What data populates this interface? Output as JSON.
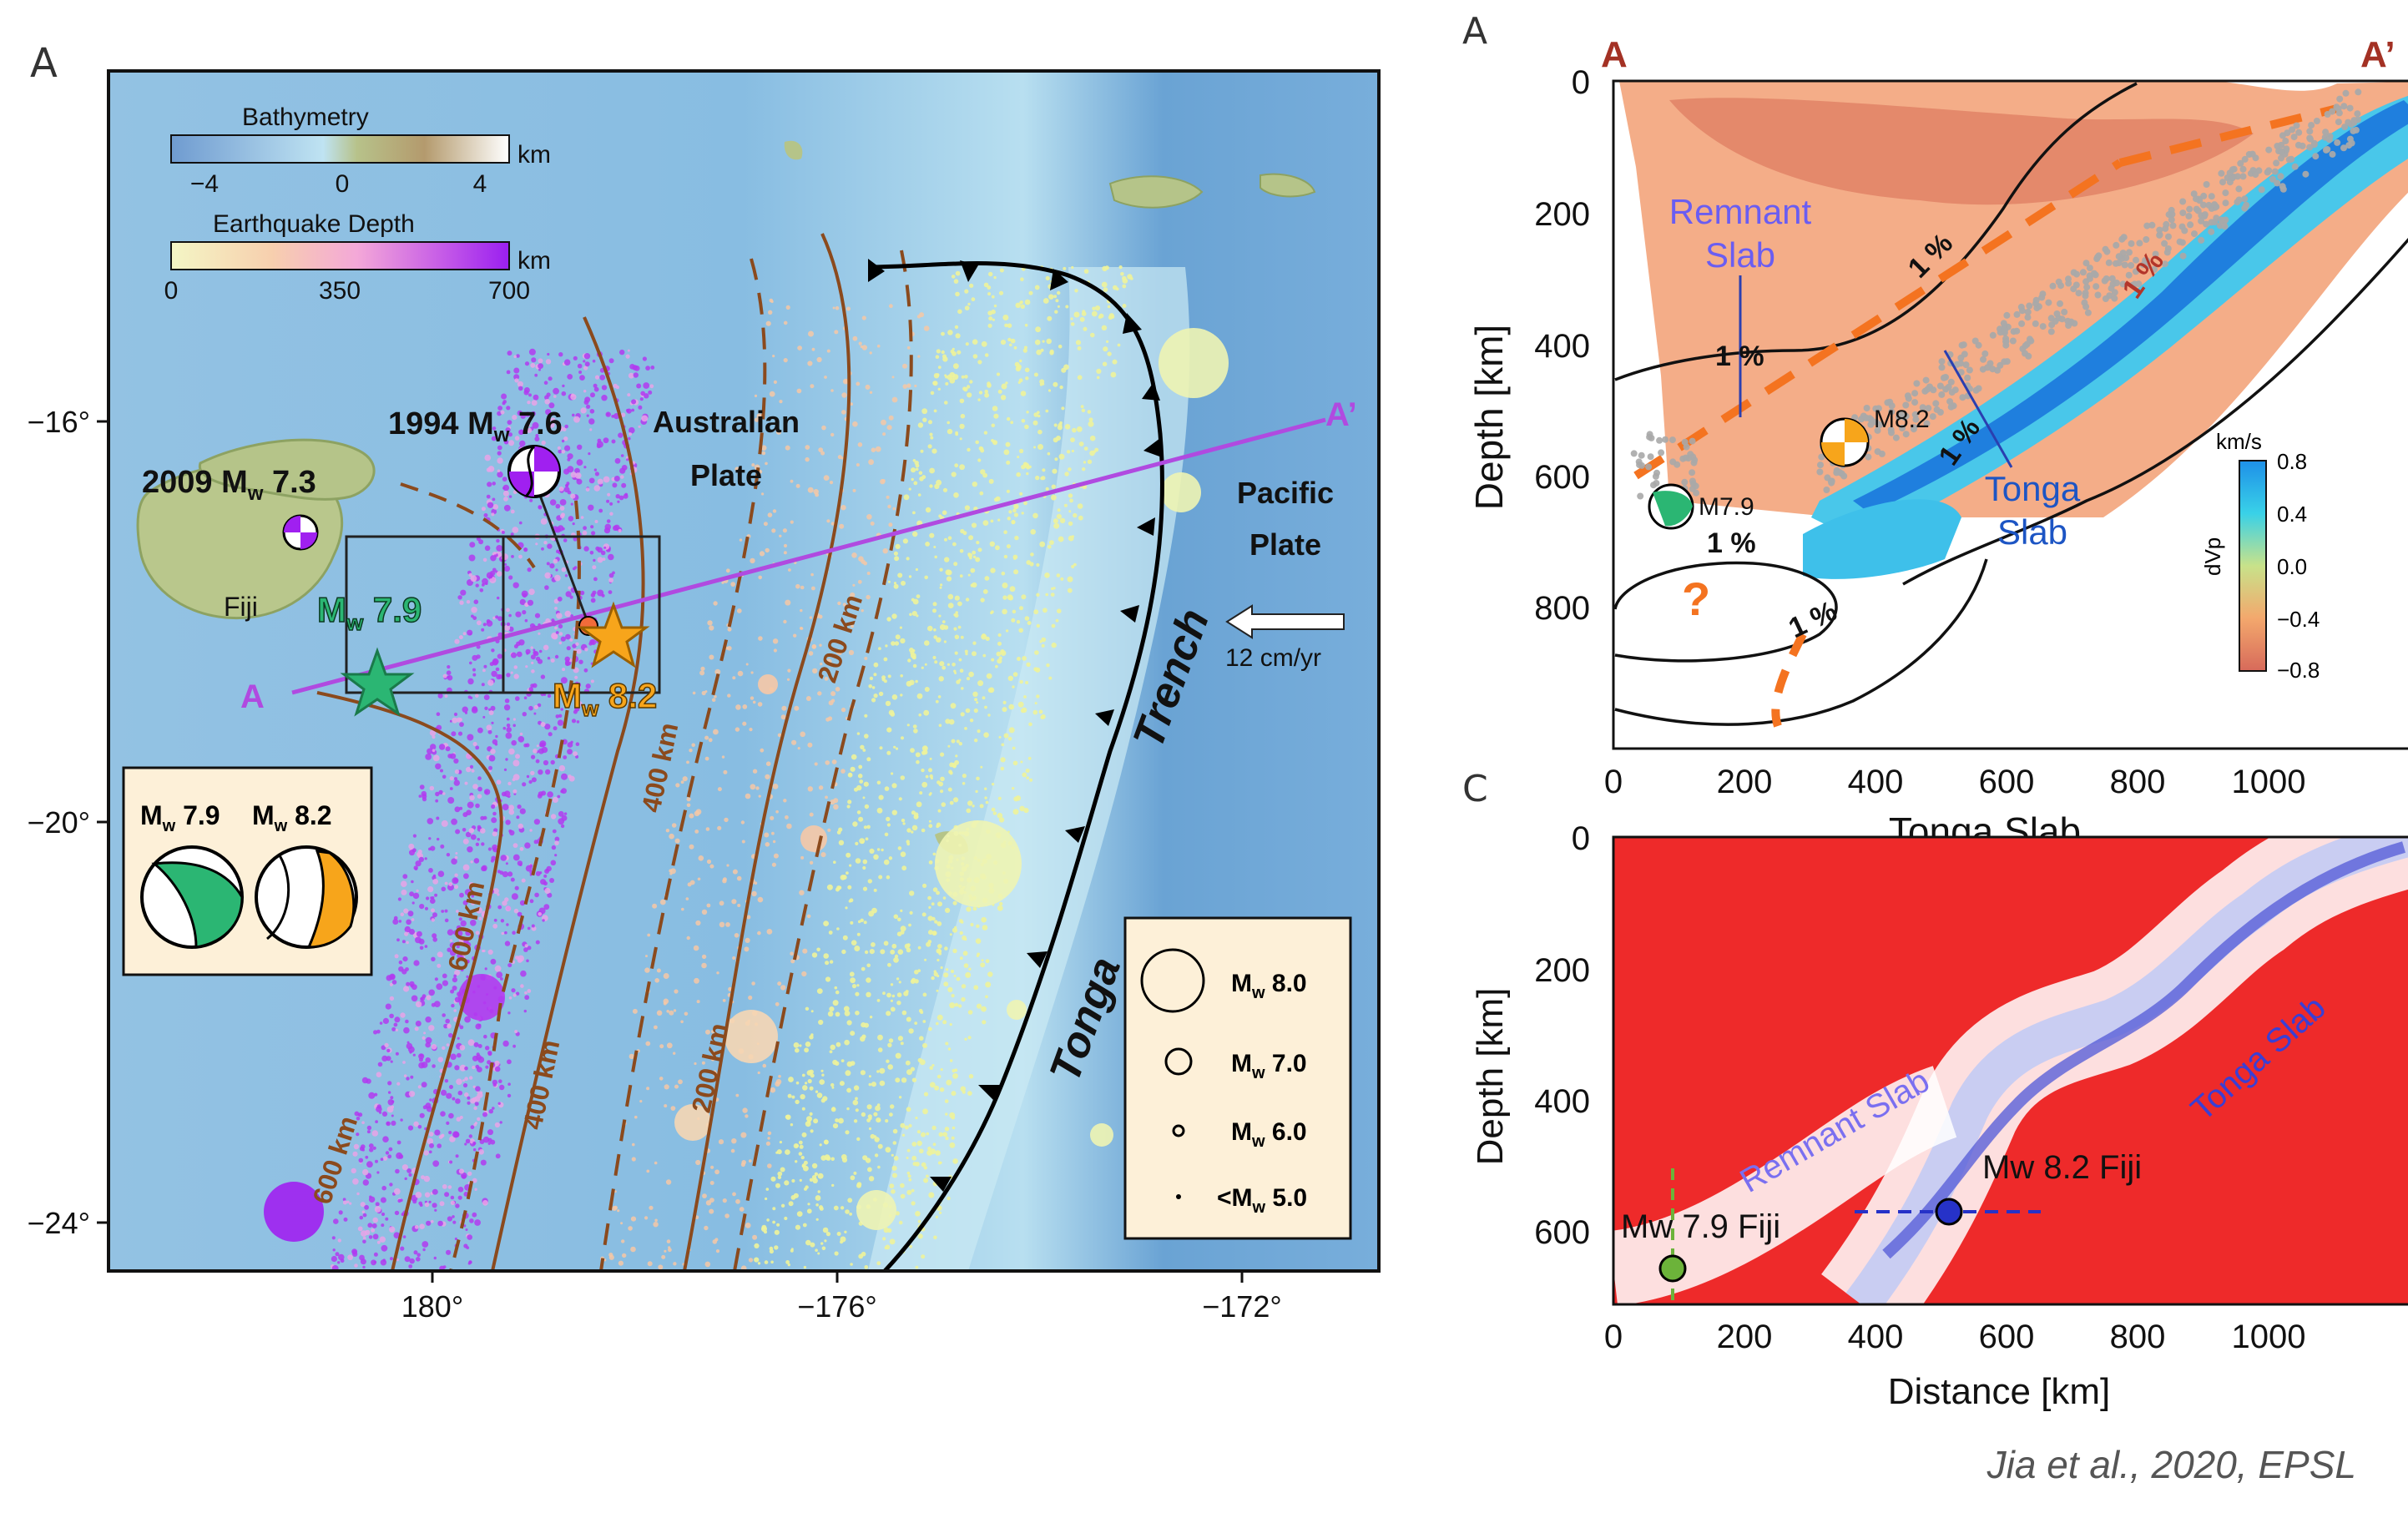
{
  "panel_a": {
    "panel_label": "A",
    "bathymetry_title": "Bathymetry",
    "bathymetry_ticks": [
      "−4",
      "0",
      "4"
    ],
    "bathymetry_unit": "km",
    "depth_title": "Earthquake Depth",
    "depth_ticks": [
      "0",
      "350",
      "700"
    ],
    "depth_unit": "km",
    "lat_ticks": [
      "−16°",
      "−20°",
      "−24°"
    ],
    "lon_ticks": [
      "180°",
      "−176°",
      "−172°"
    ],
    "eq_1994": {
      "year": "1994 M",
      "sub": "w",
      "mag": " 7.6"
    },
    "eq_2009": {
      "year": "2009 M",
      "sub": "w",
      "mag": " 7.3"
    },
    "fiji": "Fiji",
    "mw79": {
      "m": "M",
      "sub": "w",
      "mag": " 7.9"
    },
    "mw82": {
      "m": "M",
      "sub": "w",
      "mag": " 8.2"
    },
    "australian": [
      "Australian",
      "Plate"
    ],
    "pacific": [
      "Pacific",
      "Plate"
    ],
    "velocity": "12 cm/yr",
    "section_start": "A",
    "section_end": "A’",
    "trench_word": "Trench",
    "tonga_word": "Tonga",
    "contours_right": [
      "200 km"
    ],
    "contours_left": [
      "600 km",
      "400 km",
      "200 km",
      "400 km",
      "600 km"
    ],
    "inset_labels": [
      {
        "m": "M",
        "sub": "w",
        "mag": " 7.9"
      },
      {
        "m": "M",
        "sub": "w",
        "mag": " 8.2"
      }
    ],
    "legend": [
      {
        "m": "M",
        "sub": "w",
        "mag": " 8.0"
      },
      {
        "m": "M",
        "sub": "w",
        "mag": " 7.0"
      },
      {
        "m": "M",
        "sub": "w",
        "mag": " 6.0"
      },
      {
        "m": "<M",
        "sub": "w",
        "mag": " 5.0"
      }
    ],
    "colors": {
      "ocean": "#86b8dd",
      "land": "#b6c58a",
      "deep_eq": "#a020f0",
      "mw79": "#2bb673",
      "mw82": "#f7a51b",
      "section": "#b04ae0",
      "contour": "#8b4a1d"
    }
  },
  "panel_b": {
    "panel_label": "A",
    "start": "A",
    "end": "A’",
    "ylabel": "Depth [km]",
    "xlabel": "Tonga Slab",
    "y_ticks": [
      "0",
      "200",
      "400",
      "600",
      "800"
    ],
    "x_ticks": [
      "0",
      "200",
      "400",
      "600",
      "800",
      "1000"
    ],
    "remnant": [
      "Remnant",
      "Slab"
    ],
    "tonga": [
      "Tonga",
      "Slab"
    ],
    "m82": "M8.2",
    "m79": "M7.9",
    "question": "?",
    "pct": [
      "1 %",
      "1 %",
      "1 %",
      "1 %",
      "1 %",
      "1 %"
    ],
    "cbar_unit": "km/s",
    "cbar_label": "dVp",
    "cbar_ticks": [
      "0.8",
      "0.4",
      "0.0",
      "−0.4",
      "−0.8"
    ]
  },
  "panel_c": {
    "panel_label": "C",
    "ylabel": "Depth [km]",
    "xlabel": "Distance [km]",
    "y_ticks": [
      "0",
      "200",
      "400",
      "600"
    ],
    "x_ticks": [
      "0",
      "200",
      "400",
      "600",
      "800",
      "1000"
    ],
    "remnant": "Remnant Slab",
    "tonga": "Tonga Slab",
    "fiji82": "Mw 8.2 Fiji",
    "fiji79": "Mw 7.9 Fiji"
  },
  "citation": "Jia et al., 2020, EPSL"
}
